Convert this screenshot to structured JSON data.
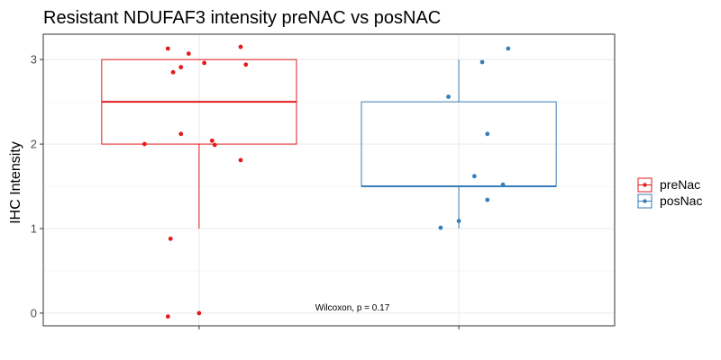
{
  "chart_data": {
    "type": "boxplot",
    "title": "Resistant NDUFAF3 intensity preNAC vs posNAC",
    "xlabel": "",
    "ylabel": "IHC Intensity",
    "ylim": [
      -0.15,
      3.3
    ],
    "yticks": [
      "0",
      "1",
      "2",
      "3"
    ],
    "grid": true,
    "legend_position": "right",
    "annotation": "Wilcoxon, p = 0.17",
    "series": [
      {
        "name": "preNac",
        "color": "#e41a1c",
        "box": {
          "min": 1,
          "q1": 2,
          "median": 2.5,
          "q3": 3,
          "max": 3
        },
        "points": [
          {
            "x": 0.88,
            "y": 3.13
          },
          {
            "x": 0.96,
            "y": 3.07
          },
          {
            "x": 1.16,
            "y": 3.15
          },
          {
            "x": 1.02,
            "y": 2.96
          },
          {
            "x": 0.93,
            "y": 2.91
          },
          {
            "x": 1.18,
            "y": 2.94
          },
          {
            "x": 0.9,
            "y": 2.85
          },
          {
            "x": 0.93,
            "y": 2.12
          },
          {
            "x": 0.79,
            "y": 2.0
          },
          {
            "x": 1.05,
            "y": 2.04
          },
          {
            "x": 1.06,
            "y": 1.99
          },
          {
            "x": 1.16,
            "y": 1.81
          },
          {
            "x": 0.89,
            "y": 0.88
          },
          {
            "x": 0.88,
            "y": -0.04
          },
          {
            "x": 1.0,
            "y": 0.0
          }
        ]
      },
      {
        "name": "posNac",
        "color": "#377eb8",
        "box": {
          "min": 1,
          "q1": 1.5,
          "median": 1.5,
          "q3": 2.5,
          "max": 3
        },
        "points": [
          {
            "x": 2.19,
            "y": 3.13
          },
          {
            "x": 2.09,
            "y": 2.97
          },
          {
            "x": 1.96,
            "y": 2.56
          },
          {
            "x": 2.11,
            "y": 2.12
          },
          {
            "x": 2.06,
            "y": 1.62
          },
          {
            "x": 2.17,
            "y": 1.52
          },
          {
            "x": 2.11,
            "y": 1.34
          },
          {
            "x": 2.0,
            "y": 1.09
          },
          {
            "x": 1.93,
            "y": 1.01
          }
        ]
      }
    ]
  }
}
